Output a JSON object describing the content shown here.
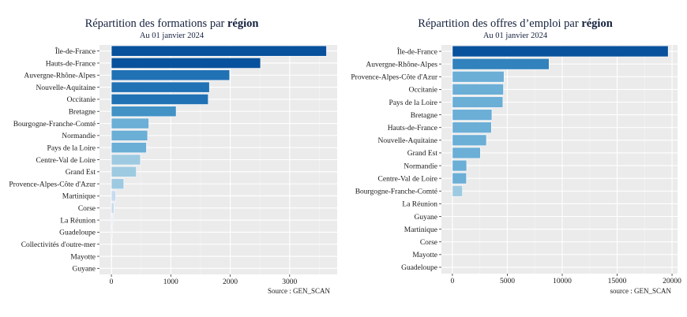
{
  "chart_data": [
    {
      "type": "bar",
      "orientation": "horizontal",
      "title_main": "Répartition des formations par ",
      "title_bold": "région",
      "subtitle": "Au 01 janvier 2024",
      "caption": "Source : GEN_SCAN",
      "xlim": [
        -200,
        3800
      ],
      "xticks": [
        0,
        1000,
        2000,
        3000
      ],
      "xtick_labels": [
        "0",
        "1000",
        "2000",
        "3000"
      ],
      "grid": true,
      "categories": [
        "Île-de-France",
        "Hauts-de-France",
        "Auvergne-Rhône-Alpes",
        "Nouvelle-Aquitaine",
        "Occitanie",
        "Bretagne",
        "Bourgogne-Franche-Comté",
        "Normandie",
        "Pays de la Loire",
        "Centre-Val de Loire",
        "Grand Est",
        "Provence-Alpes-Côte d'Azur",
        "Martinique",
        "Corse",
        "La Réunion",
        "Guadeloupe",
        "Collectivités d'outre-mer",
        "Mayotte",
        "Guyane"
      ],
      "values": [
        3620,
        2510,
        1990,
        1650,
        1630,
        1090,
        630,
        610,
        590,
        490,
        420,
        210,
        75,
        45,
        25,
        15,
        10,
        6,
        4
      ],
      "colors": [
        "#08519c",
        "#08519c",
        "#2171b5",
        "#2171b5",
        "#2171b5",
        "#4292c6",
        "#6baed6",
        "#6baed6",
        "#6baed6",
        "#9ecae1",
        "#9ecae1",
        "#9ecae1",
        "#c6dbef",
        "#c6dbef",
        "#deebf7",
        "#deebf7",
        "#deebf7",
        "#deebf7",
        "#deebf7"
      ]
    },
    {
      "type": "bar",
      "orientation": "horizontal",
      "title_main": "Répartition des offres d’emploi par ",
      "title_bold": "région",
      "subtitle": "Au 01 janvier 2024",
      "caption": "source : GEN_SCAN",
      "xlim": [
        -1000,
        20500
      ],
      "xticks": [
        0,
        5000,
        10000,
        15000,
        20000
      ],
      "xtick_labels": [
        "0",
        "5000",
        "10000",
        "15000",
        "20000"
      ],
      "grid": true,
      "categories": [
        "Île-de-France",
        "Auvergne-Rhône-Alpes",
        "Provence-Alpes-Côte d'Azur",
        "Occitanie",
        "Pays de la Loire",
        "Bretagne",
        "Hauts-de-France",
        "Nouvelle-Aquitaine",
        "Grand Est",
        "Normandie",
        "Centre-Val de Loire",
        "Bourgogne-Franche-Comté",
        "La Réunion",
        "Guyane",
        "Martinique",
        "Corse",
        "Mayotte",
        "Guadeloupe"
      ],
      "values": [
        19650,
        8800,
        4700,
        4650,
        4600,
        3600,
        3550,
        3100,
        2550,
        1300,
        1280,
        920,
        15,
        10,
        8,
        6,
        4,
        2
      ],
      "colors": [
        "#08519c",
        "#3182bd",
        "#6baed6",
        "#6baed6",
        "#6baed6",
        "#6baed6",
        "#6baed6",
        "#6baed6",
        "#6baed6",
        "#6baed6",
        "#6baed6",
        "#9ecae1",
        "#c6dbef",
        "#c6dbef",
        "#c6dbef",
        "#c6dbef",
        "#c6dbef",
        "#c6dbef"
      ]
    }
  ]
}
